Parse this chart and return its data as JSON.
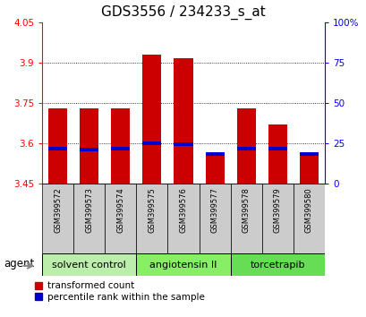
{
  "title": "GDS3556 / 234233_s_at",
  "samples": [
    "GSM399572",
    "GSM399573",
    "GSM399574",
    "GSM399575",
    "GSM399576",
    "GSM399577",
    "GSM399578",
    "GSM399579",
    "GSM399580"
  ],
  "bar_bottoms": [
    3.45,
    3.45,
    3.45,
    3.45,
    3.45,
    3.45,
    3.45,
    3.45,
    3.45
  ],
  "bar_tops": [
    3.73,
    3.73,
    3.73,
    3.93,
    3.915,
    3.555,
    3.73,
    3.67,
    3.565
  ],
  "percentile_values": [
    3.575,
    3.57,
    3.575,
    3.595,
    3.59,
    3.555,
    3.575,
    3.575,
    3.555
  ],
  "ylim_left": [
    3.45,
    4.05
  ],
  "yticks_left": [
    3.45,
    3.6,
    3.75,
    3.9,
    4.05
  ],
  "ytick_labels_left": [
    "3.45",
    "3.6",
    "3.75",
    "3.9",
    "4.05"
  ],
  "yticks_right_pct": [
    0,
    25,
    50,
    75,
    100
  ],
  "ytick_labels_right": [
    "0",
    "25",
    "50",
    "75",
    "100%"
  ],
  "grid_yticks": [
    3.6,
    3.75,
    3.9
  ],
  "bar_color": "#cc0000",
  "percentile_color": "#0000cc",
  "bar_width": 0.6,
  "groups": [
    {
      "label": "solvent control",
      "indices": [
        0,
        1,
        2
      ],
      "color": "#bbeeaa"
    },
    {
      "label": "angiotensin II",
      "indices": [
        3,
        4,
        5
      ],
      "color": "#88ee66"
    },
    {
      "label": "torcetrapib",
      "indices": [
        6,
        7,
        8
      ],
      "color": "#66dd55"
    }
  ],
  "agent_label": "agent",
  "legend_red": "transformed count",
  "legend_blue": "percentile rank within the sample",
  "background_xtick": "#cccccc",
  "title_fontsize": 11,
  "tick_fontsize": 7.5,
  "sample_fontsize": 6,
  "group_fontsize": 8
}
